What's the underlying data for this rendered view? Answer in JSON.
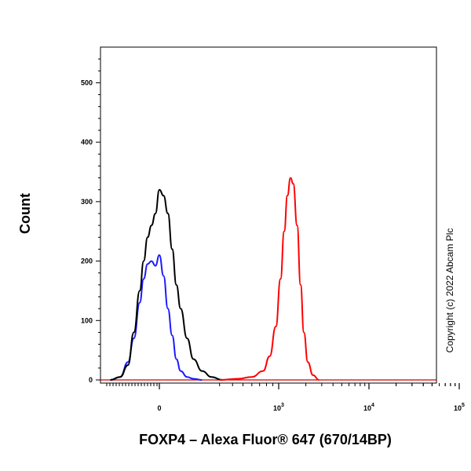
{
  "chart_data": {
    "type": "line",
    "xlabel": "FOXP4 – Alexa Fluor® 647 (670/14BP)",
    "ylabel": "Count",
    "ylim": [
      0,
      560
    ],
    "y_ticks": [
      0,
      100,
      200,
      300,
      400,
      500
    ],
    "x_scale": "biexponential",
    "x_ticks": [
      {
        "value": 0,
        "base": "0",
        "exp": ""
      },
      {
        "value": 1000,
        "base": "10",
        "exp": "3"
      },
      {
        "value": 10000,
        "base": "10",
        "exp": "4"
      },
      {
        "value": 100000,
        "base": "10",
        "exp": "5"
      }
    ],
    "grid": false,
    "legend": "none",
    "annotation": "Copyright (c) 2022 Abcam Plc",
    "series": [
      {
        "color": "#1a1aff",
        "x": [
          -250,
          -200,
          -160,
          -130,
          -100,
          -80,
          -60,
          -40,
          -20,
          0,
          20,
          40,
          60,
          80,
          100,
          130,
          160,
          200
        ],
        "y": [
          0,
          5,
          30,
          70,
          130,
          170,
          195,
          200,
          192,
          210,
          175,
          120,
          75,
          35,
          15,
          5,
          2,
          0
        ]
      },
      {
        "color": "#000000",
        "x": [
          -250,
          -200,
          -160,
          -130,
          -100,
          -80,
          -60,
          -40,
          -20,
          0,
          20,
          40,
          60,
          80,
          100,
          130,
          160,
          200,
          250,
          320
        ],
        "y": [
          0,
          5,
          25,
          80,
          150,
          200,
          240,
          260,
          280,
          320,
          310,
          280,
          220,
          160,
          120,
          70,
          35,
          15,
          5,
          0
        ]
      },
      {
        "color": "#ff0000",
        "x": [
          300,
          450,
          600,
          750,
          850,
          950,
          1050,
          1150,
          1250,
          1350,
          1450,
          1600,
          1750,
          1900,
          2100,
          2400,
          2800
        ],
        "y": [
          0,
          2,
          5,
          15,
          40,
          90,
          170,
          250,
          310,
          340,
          330,
          260,
          160,
          80,
          30,
          8,
          0
        ]
      }
    ]
  }
}
